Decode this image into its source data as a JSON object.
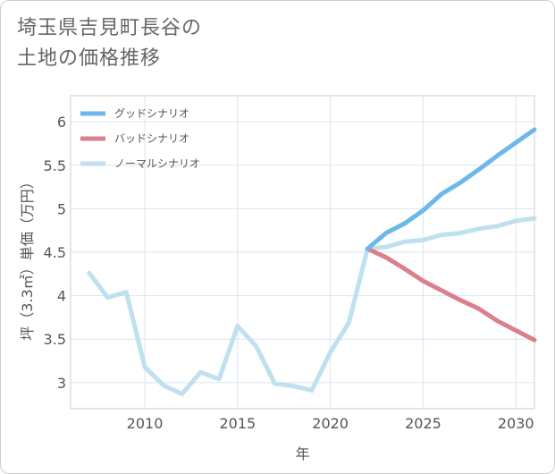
{
  "title_lines": [
    "埼玉県吉見町長谷の",
    "土地の価格推移"
  ],
  "chart_data": {
    "type": "line",
    "xlabel": "年",
    "ylabel": "坪（3.3㎡）単価（万円）",
    "xlim": [
      2006,
      2031
    ],
    "ylim": [
      2.7,
      6.3
    ],
    "x_ticks": [
      2010,
      2015,
      2020,
      2025,
      2030
    ],
    "y_ticks": [
      3,
      3.5,
      4,
      4.5,
      5,
      5.5,
      6
    ],
    "grid": true,
    "legend_position": "top-left",
    "series": [
      {
        "name": "グッドシナリオ",
        "color": "#6cb8ea",
        "x": [
          2022,
          2023,
          2024,
          2025,
          2026,
          2027,
          2028,
          2029,
          2030,
          2031
        ],
        "values": [
          4.54,
          4.72,
          4.83,
          4.98,
          5.17,
          5.3,
          5.45,
          5.61,
          5.76,
          5.91
        ]
      },
      {
        "name": "バッドシナリオ",
        "color": "#d9808c",
        "x": [
          2022,
          2023,
          2024,
          2025,
          2026,
          2027,
          2028,
          2029,
          2030,
          2031
        ],
        "values": [
          4.54,
          4.44,
          4.31,
          4.17,
          4.06,
          3.95,
          3.85,
          3.71,
          3.6,
          3.49
        ]
      },
      {
        "name": "ノーマルシナリオ",
        "color": "#bfe0ee",
        "x": [
          2007,
          2008,
          2009,
          2010,
          2011,
          2012,
          2013,
          2014,
          2015,
          2016,
          2017,
          2018,
          2019,
          2020,
          2021,
          2022,
          2023,
          2024,
          2025,
          2026,
          2027,
          2028,
          2029,
          2030,
          2031
        ],
        "values": [
          4.26,
          3.98,
          4.04,
          3.18,
          2.97,
          2.87,
          3.12,
          3.04,
          3.65,
          3.42,
          2.99,
          2.96,
          2.91,
          3.35,
          3.69,
          4.54,
          4.56,
          4.62,
          4.64,
          4.7,
          4.72,
          4.77,
          4.8,
          4.86,
          4.89
        ]
      }
    ]
  }
}
